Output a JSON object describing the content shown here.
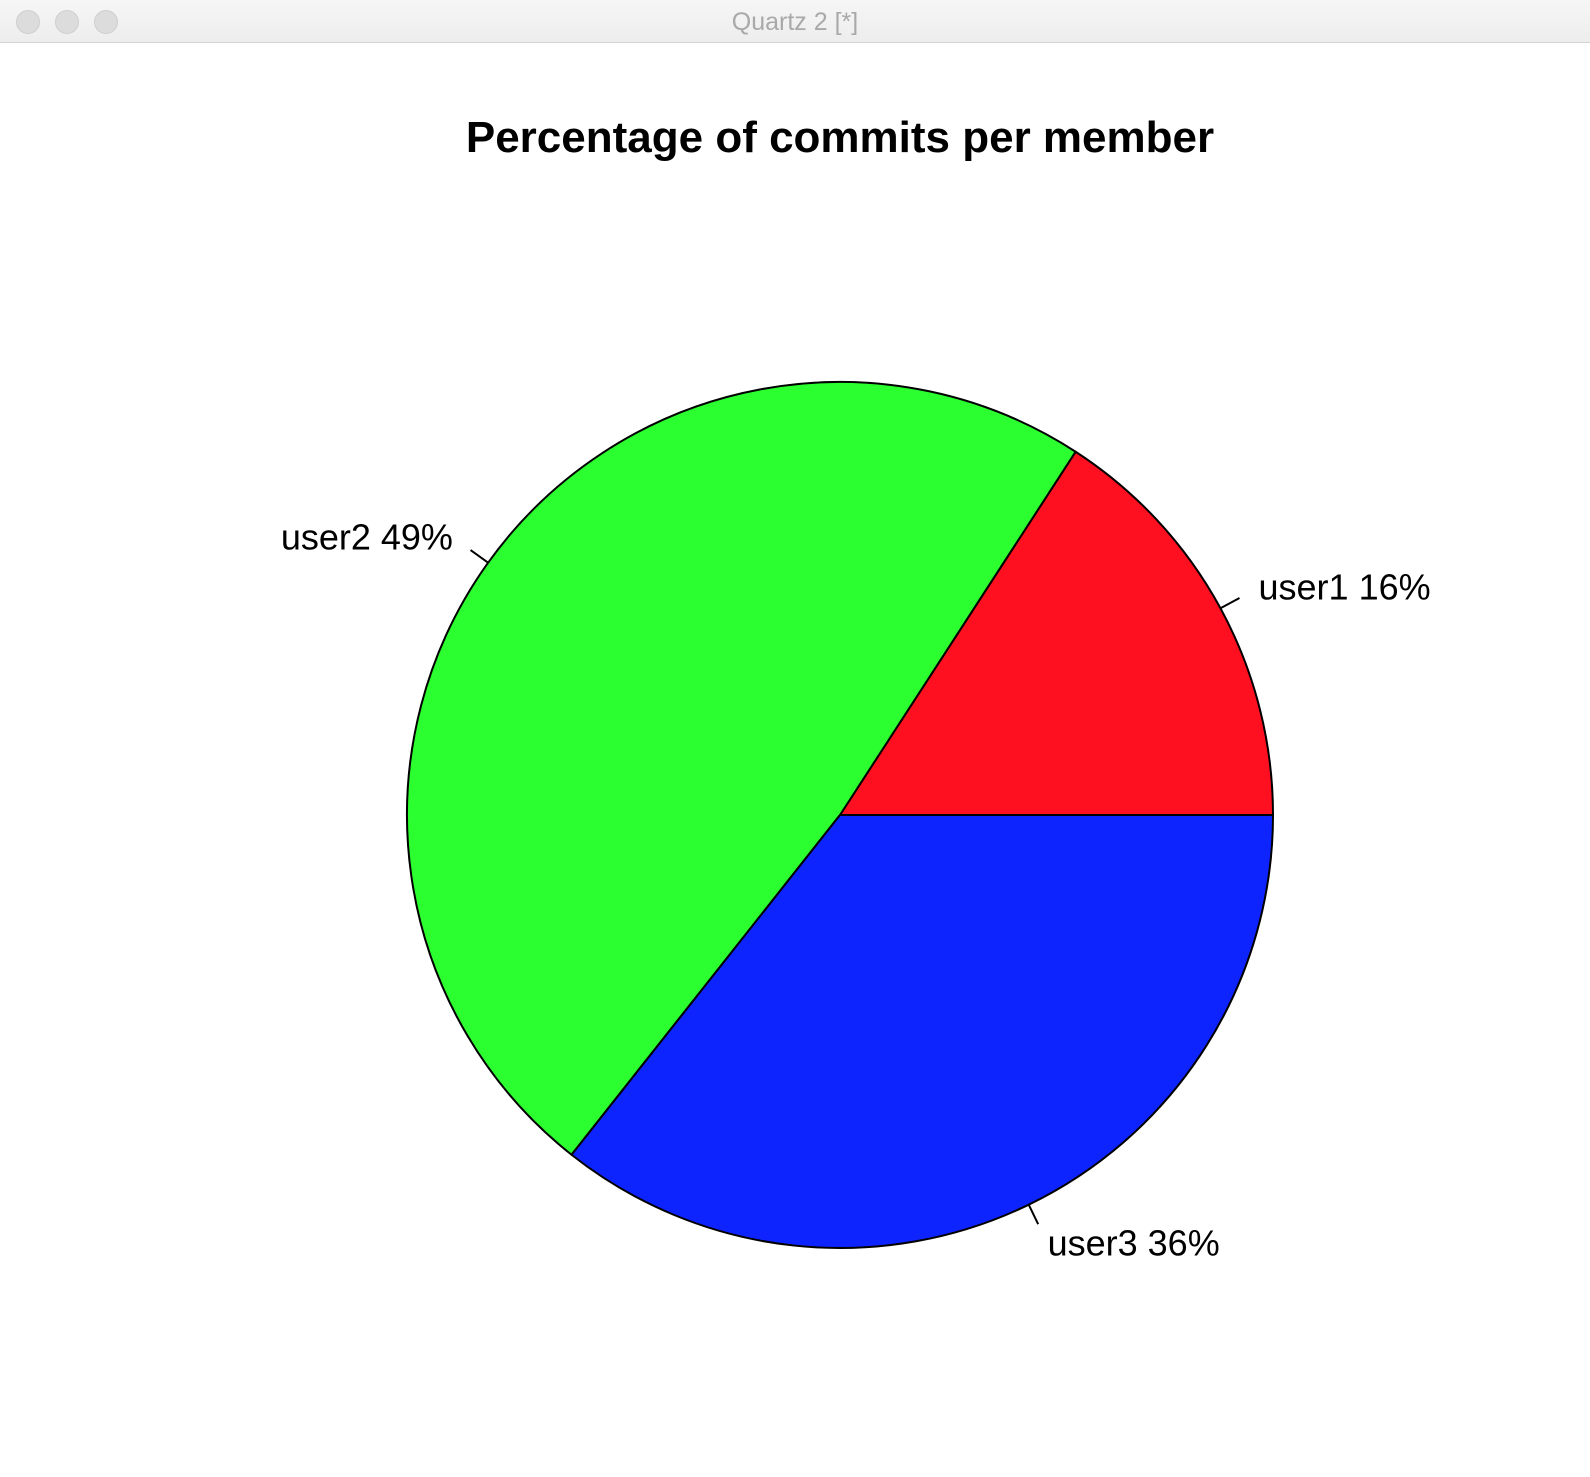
{
  "window": {
    "title": "Quartz 2 [*]"
  },
  "chart_data": {
    "type": "pie",
    "title": "Percentage of commits per member",
    "slices": [
      {
        "label": "user1 16%",
        "name": "user1",
        "value": 16,
        "color": "#ff1020"
      },
      {
        "label": "user2 49%",
        "name": "user2",
        "value": 49,
        "color": "#2bff2f"
      },
      {
        "label": "user3 36%",
        "name": "user3",
        "value": 36,
        "color": "#0e24ff"
      }
    ],
    "start_angle": "0 degrees (3 o'clock), counter-clockwise",
    "outline_color": "#000000"
  }
}
